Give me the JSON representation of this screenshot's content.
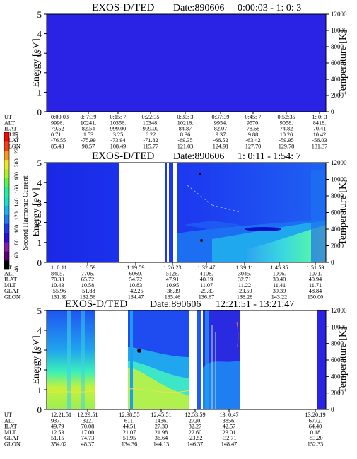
{
  "colorbar": {
    "label": "Second Harmonic Current",
    "ticks": [
      "40",
      "60",
      "80",
      "100",
      "120",
      "140",
      "160",
      "180",
      "200",
      "220",
      "240"
    ],
    "colors": [
      "#000000",
      "#5a0078",
      "#8a1aa8",
      "#2a0ee0",
      "#1d39f0",
      "#1e7cf5",
      "#13b8ef",
      "#17e1c8",
      "#1cf29a",
      "#58f64b",
      "#b0f02a",
      "#f0e628",
      "#f59a1a",
      "#ff3a10",
      "#ff0000"
    ]
  },
  "chart_data": [
    {
      "type": "heatmap",
      "title": "EXOS-D/TED",
      "date_label": "Date:890606",
      "time_range": "0:00:03 - 1: 0: 3",
      "ylabel": "Energy [eV]",
      "y2label": "Temperature [K]",
      "ylim": [
        0,
        5
      ],
      "y_ticks": [
        "0",
        "1",
        "2",
        "3",
        "4",
        "5"
      ],
      "y2lim": [
        0,
        12000
      ],
      "y2_ticks": [
        "0",
        "2000",
        "4000",
        "6000",
        "8000",
        "10000",
        "12000"
      ],
      "x_ticks": [
        "0:00:03",
        "0: 7:39",
        "0:15: 7",
        "0:22:35",
        "0:30: 3",
        "0:37:39",
        "0:45: 7",
        "0:52:35",
        "1: 0: 3"
      ],
      "orbit_table": {
        "row_labels": [
          "UT",
          "ALT",
          "ILAT",
          "MLT",
          "GLAT",
          "GLON"
        ],
        "rows": [
          [
            "0:00:03",
            "0: 7:39",
            "0:15: 7",
            "0:22:35",
            "0:30: 3",
            "0:37:39",
            "0:45: 7",
            "0:52:35",
            "1: 0: 3"
          ],
          [
            "9996.",
            "10241.",
            "10356.",
            "10348.",
            "10216.",
            "9954.",
            "9570.",
            "9058.",
            "8418."
          ],
          [
            "79.52",
            "82.54",
            "999.00",
            "999.00",
            "84.87",
            "82.07",
            "78.68",
            "74.82",
            "70.41"
          ],
          [
            "0.71",
            "1.53",
            "3.25",
            "6.22",
            "8.36",
            "9.37",
            "9.88",
            "10.20",
            "10.42"
          ],
          [
            "-76.55",
            "-75.99",
            "-73.94",
            "-71.82",
            "-69.35",
            "-66.52",
            "-63.42",
            "-59.95",
            "-56.03"
          ],
          [
            "85.43",
            "98.57",
            "108.49",
            "115.77",
            "121.03",
            "124.91",
            "127.70",
            "129.78",
            "131.37"
          ]
        ]
      }
    },
    {
      "type": "heatmap",
      "title": "EXOS-D/TED",
      "date_label": "Date:890606",
      "time_range": "1: 0:11 - 1:54: 7",
      "ylabel": "Energy [eV]",
      "y2label": "Temperature [K]",
      "ylim": [
        0,
        5
      ],
      "y_ticks": [
        "0",
        "1",
        "2",
        "3",
        "4",
        "5"
      ],
      "y2lim": [
        0,
        12000
      ],
      "y2_ticks": [
        "0",
        "2000",
        "4000",
        "6000",
        "8000",
        "10000",
        "12000"
      ],
      "x_ticks": [
        "1: 0:11",
        "1: 6:59",
        "1:19:59",
        "1:26:23",
        "1:32:47",
        "1:39:11",
        "1:45:35",
        "1:51:59"
      ],
      "orbit_table": {
        "row_labels": [
          "UT",
          "ALT",
          "ILAT",
          "MLT",
          "GLAT",
          "GLON"
        ],
        "rows": [
          [
            "1: 0:11",
            "1: 6:59",
            "1:19:59",
            "1:26:23",
            "1:32:47",
            "1:39:11",
            "1:45:35",
            "1:51:59"
          ],
          [
            "8405.",
            "7706.",
            "6069.",
            "5126.",
            "4108.",
            "3045.",
            "1996.",
            "1071."
          ],
          [
            "70.33",
            "65.72",
            "54.72",
            "47.91",
            "40.19",
            "32.71",
            "30.40",
            "40.94"
          ],
          [
            "10.43",
            "10.58",
            "10.83",
            "10.95",
            "11.07",
            "11.22",
            "11.41",
            "11.71"
          ],
          [
            "-55.96",
            "-51.88",
            "-42.25",
            "-36.39",
            "-29.83",
            "-23.59",
            "39.39",
            "48.84"
          ],
          [
            "131.39",
            "132.56",
            "134.47",
            "135.46",
            "136.67",
            "138.28",
            "143.22",
            "150.00"
          ]
        ]
      }
    },
    {
      "type": "heatmap",
      "title": "EXOS-D/TED",
      "date_label": "Date:890606",
      "time_range": "12:21:51 - 13:21:47",
      "ylabel": "Energy [eV]",
      "y2label": "Temperature [K]",
      "ylim": [
        0,
        5
      ],
      "y_ticks": [
        "0",
        "1",
        "2",
        "3",
        "4",
        "5"
      ],
      "y2lim": [
        0,
        12000
      ],
      "y2_ticks": [
        "0",
        "2000",
        "4000",
        "6000",
        "8000",
        "10000",
        "12000"
      ],
      "x_ticks": [
        "12:21:51",
        "12:29:51",
        "12:38:55",
        "12:45:51",
        "12:53:59",
        "13: 0:47",
        "13:20:19"
      ],
      "orbit_table": {
        "row_labels": [
          "UT",
          "ALT",
          "ILAT",
          "MLT",
          "GLAT",
          "GLON"
        ],
        "rows": [
          [
            "12:21:51",
            "12:29:51",
            "12:38:55",
            "12:45:51",
            "12:53:59",
            "13: 0:47",
            "13:20:19"
          ],
          [
            "937.",
            "322.",
            "611.",
            "1436.",
            "2720.",
            "3856.",
            "6772."
          ],
          [
            "49.79",
            "70.08",
            "44.51",
            "27.30",
            "32.27",
            "42.57",
            "64.40"
          ],
          [
            "12.53",
            "17.00",
            "21.07",
            "21.98",
            "22.60",
            "23.01",
            "0.18"
          ],
          [
            "51.15",
            "74.73",
            "51.95",
            "36.64",
            "-23.52",
            "-32.71",
            "-53.20"
          ],
          [
            "354.02",
            "48.37",
            "134.36",
            "144.13",
            "146.37",
            "148.47",
            "152.33"
          ]
        ]
      }
    }
  ]
}
